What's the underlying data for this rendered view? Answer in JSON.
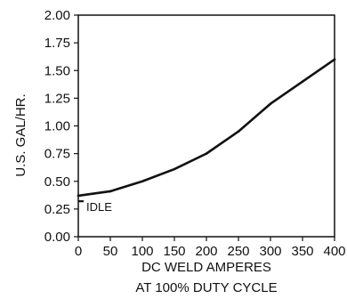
{
  "chart_data": {
    "type": "line",
    "title": "",
    "xlabel_lines": [
      "DC WELD AMPERES",
      "AT 100% DUTY CYCLE"
    ],
    "ylabel": "U.S. GAL/HR.",
    "xlim": [
      0,
      400
    ],
    "ylim": [
      0,
      2.0
    ],
    "x_ticks": [
      "0",
      "50",
      "100",
      "150",
      "200",
      "250",
      "300",
      "350",
      "400"
    ],
    "y_ticks": [
      "0.00",
      "0.25",
      "0.50",
      "0.75",
      "1.00",
      "1.25",
      "1.50",
      "1.75",
      "2.00"
    ],
    "grid": false,
    "legend": "none",
    "series": [
      {
        "x": [
          0,
          50,
          100,
          150,
          200,
          250,
          300,
          350,
          400
        ],
        "y": [
          0.37,
          0.41,
          0.5,
          0.61,
          0.75,
          0.95,
          1.2,
          1.4,
          1.6
        ],
        "color": "#111111"
      }
    ],
    "annotations": [
      {
        "text": "IDLE",
        "x": 0,
        "y": 0.32
      }
    ]
  }
}
